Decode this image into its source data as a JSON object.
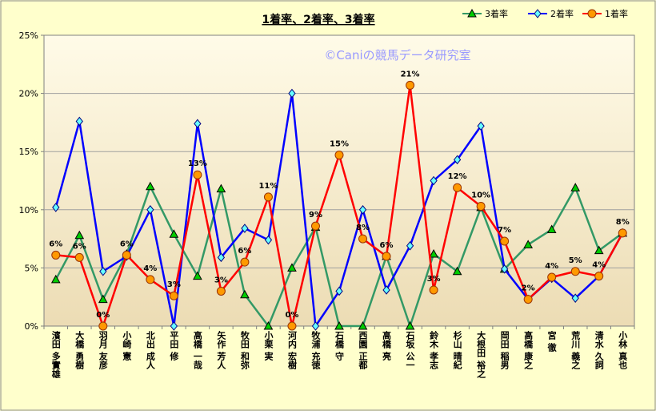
{
  "chart_data": {
    "type": "line",
    "title": "1着率、2着率、3着率",
    "watermark": "©Caniの競馬データ研究室",
    "xlabel": "",
    "ylabel": "",
    "ylim": [
      0,
      25
    ],
    "yticks": [
      "0%",
      "5%",
      "10%",
      "15%",
      "20%",
      "25%"
    ],
    "grid": true,
    "legend_position": "top-right",
    "categories": [
      "濱田 多實雄",
      "大橋 勇樹",
      "羽月 友彦",
      "小崎 憲",
      "北出 成人",
      "平田 修",
      "高橋 一哉",
      "矢作 芳人",
      "牧田 和弥",
      "小栗 実",
      "河内 宏樹",
      "牧浦 充徳",
      "石橋 守",
      "西園 正都",
      "高橋 亮",
      "石坂 公一",
      "鈴木 孝志",
      "杉山 晴紀",
      "大根田 裕之",
      "岡田 稲男",
      "高橋 康之",
      "宮 徹",
      "荒川 義之",
      "清水 久詞",
      "小林 真也"
    ],
    "series": [
      {
        "name": "3着率",
        "color": "#339966",
        "marker": "triangle",
        "marker_fill": "#00cc00",
        "values": [
          4.0,
          7.8,
          2.3,
          6.2,
          12.0,
          7.9,
          4.3,
          11.8,
          2.7,
          0,
          5.0,
          8.5,
          0,
          0,
          6.0,
          0,
          6.2,
          4.7,
          10.2,
          4.9,
          7.0,
          8.3,
          11.9,
          6.5,
          8.0
        ]
      },
      {
        "name": "2着率",
        "color": "#0000ff",
        "marker": "diamond",
        "marker_fill": "#66ffff",
        "values": [
          10.2,
          17.6,
          4.7,
          6.0,
          10.0,
          0,
          17.4,
          5.9,
          8.4,
          7.4,
          20.0,
          0,
          3.0,
          10.0,
          3.1,
          6.9,
          12.5,
          14.3,
          17.2,
          4.9,
          2.3,
          4.1,
          2.4,
          4.3,
          8.0
        ]
      },
      {
        "name": "1着率",
        "color": "#ff0000",
        "marker": "circle",
        "marker_fill": "#ff9900",
        "values": [
          6.1,
          5.9,
          0,
          6.1,
          4.0,
          2.6,
          13.0,
          3.0,
          5.5,
          11.1,
          0,
          8.6,
          14.7,
          7.5,
          6.0,
          20.7,
          3.1,
          11.9,
          10.3,
          7.3,
          2.3,
          4.2,
          4.7,
          4.3,
          8.0
        ]
      }
    ],
    "data_labels": [
      "6%",
      "6%",
      "0%",
      "6%",
      "4%",
      "3%",
      "13%",
      "3%",
      "6%",
      "11%",
      "0%",
      "9%",
      "15%",
      "8%",
      "6%",
      "21%",
      "3%",
      "12%",
      "10%",
      "7%",
      "2%",
      "4%",
      "5%",
      "4%",
      "8%"
    ]
  },
  "colors": {
    "background": "#ffffcc",
    "plot_top": "#fffbe8",
    "plot_bottom": "#ecdcb4",
    "grid": "#a0a0a0"
  }
}
